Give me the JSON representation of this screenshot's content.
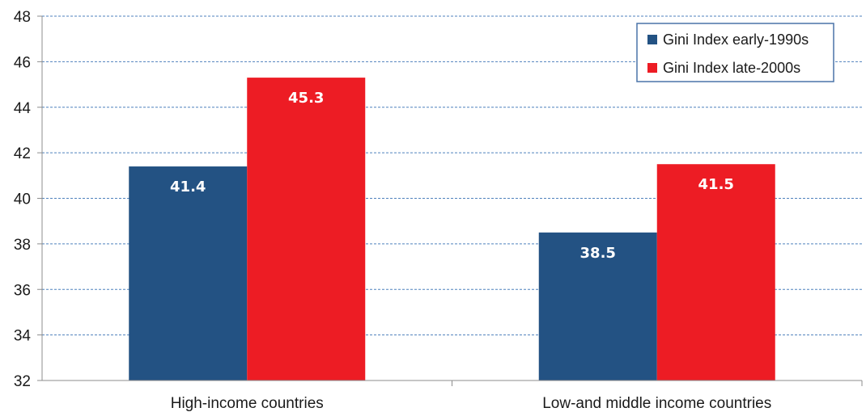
{
  "chart_data": {
    "type": "bar",
    "title": "",
    "xlabel": "",
    "ylabel": "",
    "categories": [
      "High-income countries",
      "Low-and middle income countries"
    ],
    "series": [
      {
        "name": "Gini Index early-1990s",
        "values": [
          41.4,
          38.5
        ],
        "color": "#235283"
      },
      {
        "name": "Gini Index late-2000s",
        "values": [
          45.3,
          41.5
        ],
        "color": "#ed1c24"
      }
    ],
    "ylim": [
      32,
      48
    ],
    "yticks": [
      32,
      34,
      36,
      38,
      40,
      42,
      44,
      46,
      48
    ],
    "grid": true,
    "grid_color": "#4f81bd",
    "legend": "top-right",
    "data_labels": [
      "41.4",
      "45.3",
      "38.5",
      "41.5"
    ]
  }
}
